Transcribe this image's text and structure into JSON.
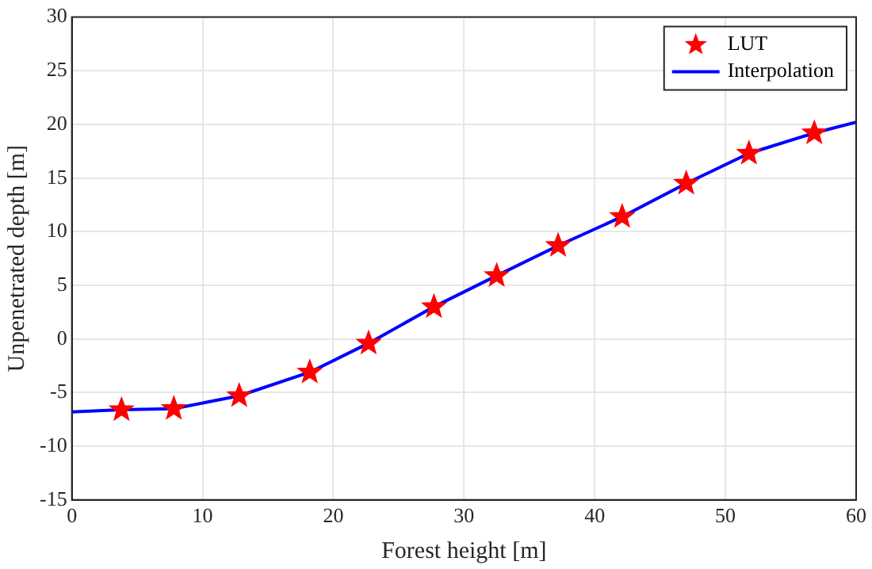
{
  "chart_data": {
    "type": "scatter",
    "xlabel": "Forest height [m]",
    "ylabel": "Unpenetrated depth [m]",
    "xlim": [
      0,
      60
    ],
    "xticks": [
      0,
      10,
      20,
      30,
      40,
      50,
      60
    ],
    "ylim": [
      -15,
      30
    ],
    "yticks": [
      -15,
      -10,
      -5,
      0,
      5,
      10,
      15,
      20,
      25,
      30
    ],
    "grid": true,
    "legend": "top right",
    "series": [
      {
        "name": "LUT",
        "type": "scatter",
        "marker": "star",
        "color": "#ff0000",
        "x": [
          3.8,
          7.8,
          12.8,
          18.2,
          22.7,
          27.7,
          32.5,
          37.2,
          42.1,
          47,
          51.8,
          56.8
        ],
        "values": [
          -6.6,
          -6.5,
          -5.3,
          -3.1,
          -0.4,
          3.0,
          5.9,
          8.7,
          11.4,
          14.5,
          17.3,
          19.2
        ]
      },
      {
        "name": "Interpolation",
        "type": "line",
        "marker": "none",
        "line_style": "solid",
        "color": "#0000ff",
        "x": [
          0,
          3.8,
          7.8,
          12.8,
          18.2,
          22.7,
          27.7,
          32.5,
          37.2,
          42.1,
          47,
          51.8,
          56.8,
          60
        ],
        "values": [
          -6.8,
          -6.6,
          -6.5,
          -5.3,
          -3.1,
          -0.4,
          3.0,
          5.9,
          8.7,
          11.4,
          14.5,
          17.3,
          19.2,
          20.2
        ]
      }
    ]
  }
}
